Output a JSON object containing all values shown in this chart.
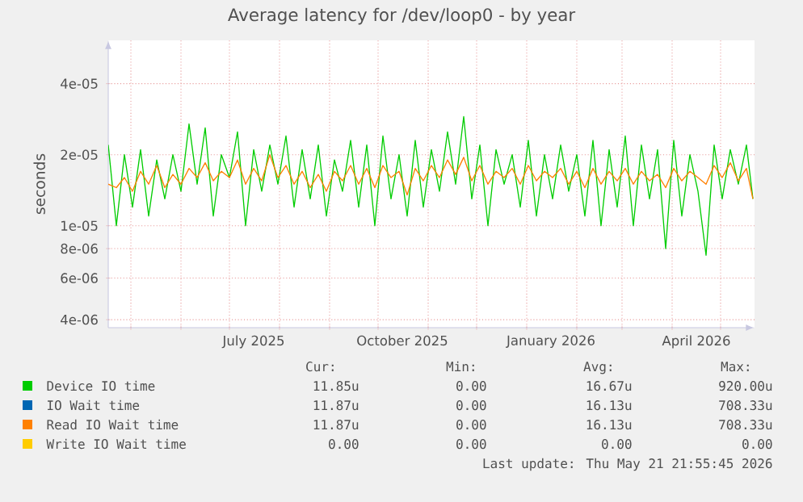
{
  "chart_data": {
    "type": "line",
    "title": "Average latency for /dev/loop0 - by year",
    "ylabel": "seconds",
    "log": "y",
    "grid": true,
    "legend": "bottom",
    "xlim": [
      "2025-04-17",
      "2026-05-22"
    ],
    "ylim": [
      3.7e-06,
      6.1e-05
    ],
    "yticks": [
      {
        "value": 4e-06,
        "label": "4e-06"
      },
      {
        "value": 6e-06,
        "label": "6e-06"
      },
      {
        "value": 8e-06,
        "label": "8e-06"
      },
      {
        "value": 1e-05,
        "label": "1e-05"
      },
      {
        "value": 2e-05,
        "label": "2e-05"
      },
      {
        "value": 4e-05,
        "label": "4e-05"
      }
    ],
    "xticks": [
      {
        "value": "2025-05-01",
        "label": null
      },
      {
        "value": "2025-06-01",
        "label": null
      },
      {
        "value": "2025-07-01",
        "label": null
      },
      {
        "value": "2025-07-16",
        "label": "July 2025"
      },
      {
        "value": "2025-08-01",
        "label": null
      },
      {
        "value": "2025-09-01",
        "label": null
      },
      {
        "value": "2025-10-01",
        "label": null
      },
      {
        "value": "2025-10-16",
        "label": "October 2025"
      },
      {
        "value": "2025-11-01",
        "label": null
      },
      {
        "value": "2025-12-01",
        "label": null
      },
      {
        "value": "2026-01-01",
        "label": null
      },
      {
        "value": "2026-01-16",
        "label": "January 2026"
      },
      {
        "value": "2026-02-01",
        "label": null
      },
      {
        "value": "2026-03-01",
        "label": null
      },
      {
        "value": "2026-04-01",
        "label": null
      },
      {
        "value": "2026-04-16",
        "label": "April 2026"
      },
      {
        "value": "2026-05-01",
        "label": null
      }
    ],
    "x": [
      "2025-04-17",
      "2025-04-22",
      "2025-04-27",
      "2025-05-02",
      "2025-05-07",
      "2025-05-12",
      "2025-05-17",
      "2025-05-22",
      "2025-05-27",
      "2025-06-01",
      "2025-06-06",
      "2025-06-11",
      "2025-06-16",
      "2025-06-21",
      "2025-06-26",
      "2025-07-01",
      "2025-07-06",
      "2025-07-11",
      "2025-07-16",
      "2025-07-21",
      "2025-07-26",
      "2025-07-31",
      "2025-08-05",
      "2025-08-10",
      "2025-08-15",
      "2025-08-20",
      "2025-08-25",
      "2025-08-30",
      "2025-09-04",
      "2025-09-09",
      "2025-09-14",
      "2025-09-19",
      "2025-09-24",
      "2025-09-29",
      "2025-10-04",
      "2025-10-09",
      "2025-10-14",
      "2025-10-19",
      "2025-10-24",
      "2025-10-29",
      "2025-11-03",
      "2025-11-08",
      "2025-11-13",
      "2025-11-18",
      "2025-11-23",
      "2025-11-28",
      "2025-12-03",
      "2025-12-08",
      "2025-12-13",
      "2025-12-18",
      "2025-12-23",
      "2025-12-28",
      "2026-01-02",
      "2026-01-07",
      "2026-01-12",
      "2026-01-17",
      "2026-01-22",
      "2026-01-27",
      "2026-02-01",
      "2026-02-06",
      "2026-02-11",
      "2026-02-16",
      "2026-02-21",
      "2026-02-26",
      "2026-03-03",
      "2026-03-08",
      "2026-03-13",
      "2026-03-18",
      "2026-03-23",
      "2026-03-28",
      "2026-04-02",
      "2026-04-07",
      "2026-04-12",
      "2026-04-17",
      "2026-04-22",
      "2026-04-27",
      "2026-05-02",
      "2026-05-07",
      "2026-05-12",
      "2026-05-17",
      "2026-05-21"
    ],
    "series": [
      {
        "name": "Device IO time",
        "color": "#00cc00",
        "values": [
          2.2e-05,
          1e-05,
          2e-05,
          1.2e-05,
          2.1e-05,
          1.1e-05,
          1.9e-05,
          1.3e-05,
          2e-05,
          1.4e-05,
          2.7e-05,
          1.5e-05,
          2.6e-05,
          1.1e-05,
          2e-05,
          1.6e-05,
          2.5e-05,
          1e-05,
          2.1e-05,
          1.4e-05,
          2.2e-05,
          1.5e-05,
          2.4e-05,
          1.2e-05,
          2.1e-05,
          1.3e-05,
          2.2e-05,
          1.1e-05,
          1.9e-05,
          1.4e-05,
          2.3e-05,
          1.2e-05,
          2.2e-05,
          1e-05,
          2.4e-05,
          1.3e-05,
          2e-05,
          1.1e-05,
          2.3e-05,
          1.2e-05,
          2.1e-05,
          1.4e-05,
          2.5e-05,
          1.5e-05,
          2.9e-05,
          1.3e-05,
          2.2e-05,
          1e-05,
          2.1e-05,
          1.5e-05,
          2e-05,
          1.2e-05,
          2.3e-05,
          1.1e-05,
          2e-05,
          1.3e-05,
          2.2e-05,
          1.4e-05,
          2e-05,
          1.1e-05,
          2.3e-05,
          1e-05,
          2.1e-05,
          1.2e-05,
          2.4e-05,
          1e-05,
          2.2e-05,
          1.3e-05,
          2.1e-05,
          8e-06,
          2.3e-05,
          1.1e-05,
          2e-05,
          1.4e-05,
          7.5e-06,
          2.2e-05,
          1.3e-05,
          2.1e-05,
          1.5e-05,
          2.2e-05,
          1.3e-05
        ]
      },
      {
        "name": "IO Wait time",
        "color": "#0066b3",
        "values": [
          null,
          null,
          null,
          null,
          null,
          null,
          null,
          null,
          null,
          null,
          null,
          null,
          null,
          null,
          null,
          null,
          null,
          null,
          null,
          null,
          null,
          null,
          null,
          null,
          null,
          null,
          null,
          null,
          null,
          null,
          null,
          null,
          null,
          null,
          null,
          null,
          null,
          null,
          null,
          null,
          null,
          null,
          null,
          null,
          null,
          null,
          null,
          null,
          null,
          null,
          null,
          null,
          null,
          null,
          null,
          null,
          null,
          null,
          null,
          null,
          null,
          null,
          null,
          null,
          null,
          null,
          null,
          null,
          null,
          null,
          null,
          null,
          null,
          null,
          null,
          null,
          null,
          null,
          null,
          null,
          null
        ]
      },
      {
        "name": "Read IO Wait time",
        "color": "#ff8000",
        "values": [
          1.5e-05,
          1.45e-05,
          1.6e-05,
          1.4e-05,
          1.7e-05,
          1.5e-05,
          1.8e-05,
          1.45e-05,
          1.65e-05,
          1.5e-05,
          1.75e-05,
          1.6e-05,
          1.85e-05,
          1.55e-05,
          1.7e-05,
          1.6e-05,
          1.9e-05,
          1.5e-05,
          1.75e-05,
          1.55e-05,
          2e-05,
          1.6e-05,
          1.8e-05,
          1.5e-05,
          1.7e-05,
          1.45e-05,
          1.65e-05,
          1.4e-05,
          1.7e-05,
          1.55e-05,
          1.8e-05,
          1.5e-05,
          1.75e-05,
          1.45e-05,
          1.8e-05,
          1.6e-05,
          1.7e-05,
          1.35e-05,
          1.75e-05,
          1.55e-05,
          1.8e-05,
          1.6e-05,
          1.9e-05,
          1.65e-05,
          1.95e-05,
          1.55e-05,
          1.8e-05,
          1.5e-05,
          1.7e-05,
          1.6e-05,
          1.75e-05,
          1.5e-05,
          1.8e-05,
          1.55e-05,
          1.7e-05,
          1.6e-05,
          1.75e-05,
          1.5e-05,
          1.7e-05,
          1.45e-05,
          1.75e-05,
          1.5e-05,
          1.7e-05,
          1.55e-05,
          1.75e-05,
          1.5e-05,
          1.7e-05,
          1.55e-05,
          1.65e-05,
          1.45e-05,
          1.75e-05,
          1.55e-05,
          1.7e-05,
          1.6e-05,
          1.5e-05,
          1.8e-05,
          1.6e-05,
          1.85e-05,
          1.55e-05,
          1.75e-05,
          1.3e-05
        ]
      },
      {
        "name": "Write IO Wait time",
        "color": "#ffcc00",
        "values": [
          null,
          null,
          null,
          null,
          null,
          null,
          null,
          null,
          null,
          null,
          null,
          null,
          null,
          null,
          null,
          null,
          null,
          null,
          null,
          null,
          null,
          null,
          null,
          null,
          null,
          null,
          null,
          null,
          null,
          null,
          null,
          null,
          null,
          null,
          null,
          null,
          null,
          null,
          null,
          null,
          null,
          null,
          null,
          null,
          null,
          null,
          null,
          null,
          null,
          null,
          null,
          null,
          null,
          null,
          null,
          null,
          null,
          null,
          null,
          null,
          null,
          null,
          null,
          null,
          null,
          null,
          null,
          null,
          null,
          null,
          null,
          null,
          null,
          null,
          null,
          null,
          null,
          null,
          null,
          null,
          null
        ]
      }
    ],
    "annotations": [
      "Cur:",
      "Min:",
      "Avg:",
      "Max:",
      "11.85u",
      "0.00",
      "16.67u",
      "920.00u",
      "11.87u",
      "0.00",
      "16.13u",
      "708.33u",
      "11.87u",
      "0.00",
      "16.13u",
      "708.33u",
      "0.00",
      "0.00",
      "0.00",
      "0.00",
      "Last update: Thu May 21 21:55:45 2026"
    ]
  }
}
